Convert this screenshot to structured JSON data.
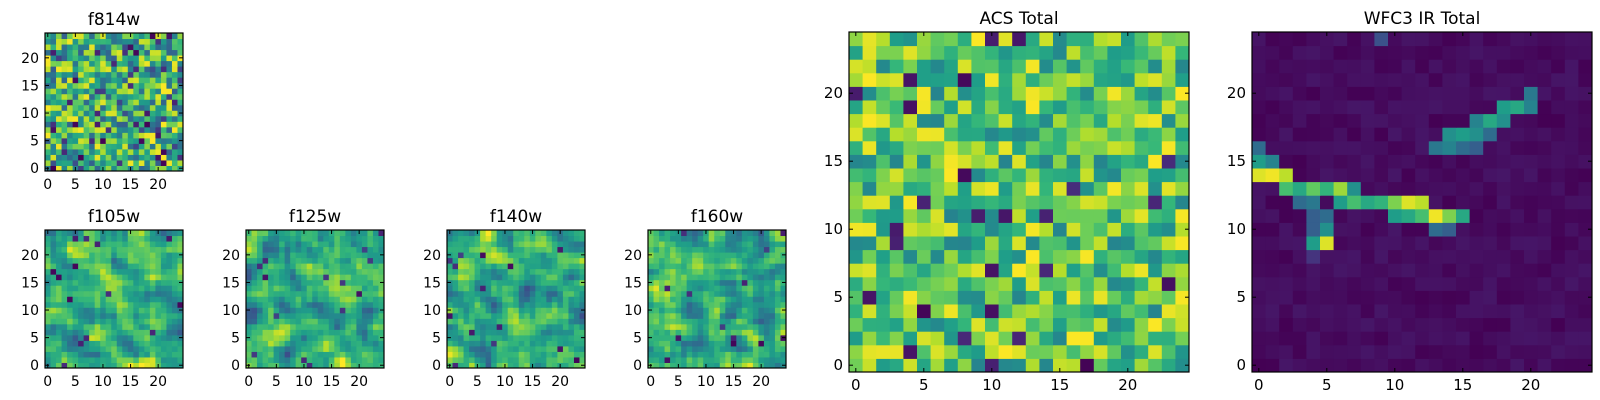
{
  "figure_title": "",
  "chart_data": [
    {
      "type": "heatmap",
      "id": "f814w",
      "title": "f814w",
      "seed": 814,
      "style": "noise",
      "grid": [
        24,
        24
      ],
      "xlim": [
        0,
        24
      ],
      "ylim": [
        0,
        24
      ],
      "xticks": [
        0,
        5,
        10,
        15,
        20
      ],
      "yticks": [
        0,
        5,
        10,
        15,
        20
      ],
      "colormap": "viridis",
      "xlabel": "",
      "ylabel": ""
    },
    {
      "type": "heatmap",
      "id": "f105w",
      "title": "f105w",
      "seed": 105,
      "style": "smooth",
      "grid": [
        24,
        24
      ],
      "xlim": [
        0,
        24
      ],
      "ylim": [
        0,
        24
      ],
      "xticks": [
        0,
        5,
        10,
        15,
        20
      ],
      "yticks": [
        0,
        5,
        10,
        15,
        20
      ],
      "colormap": "viridis",
      "xlabel": "",
      "ylabel": ""
    },
    {
      "type": "heatmap",
      "id": "f125w",
      "title": "f125w",
      "seed": 125,
      "style": "smooth",
      "grid": [
        24,
        24
      ],
      "xlim": [
        0,
        24
      ],
      "ylim": [
        0,
        24
      ],
      "xticks": [
        0,
        5,
        10,
        15,
        20
      ],
      "yticks": [
        0,
        5,
        10,
        15,
        20
      ],
      "colormap": "viridis",
      "xlabel": "",
      "ylabel": ""
    },
    {
      "type": "heatmap",
      "id": "f140w",
      "title": "f140w",
      "seed": 140,
      "style": "smooth",
      "grid": [
        24,
        24
      ],
      "xlim": [
        0,
        24
      ],
      "ylim": [
        0,
        24
      ],
      "xticks": [
        0,
        5,
        10,
        15,
        20
      ],
      "yticks": [
        0,
        5,
        10,
        15,
        20
      ],
      "colormap": "viridis",
      "xlabel": "",
      "ylabel": ""
    },
    {
      "type": "heatmap",
      "id": "f160w",
      "title": "f160w",
      "seed": 160,
      "style": "smooth",
      "grid": [
        24,
        24
      ],
      "xlim": [
        0,
        24
      ],
      "ylim": [
        0,
        24
      ],
      "xticks": [
        0,
        5,
        10,
        15,
        20
      ],
      "yticks": [
        0,
        5,
        10,
        15,
        20
      ],
      "colormap": "viridis",
      "xlabel": "",
      "ylabel": ""
    },
    {
      "type": "heatmap",
      "id": "acs-total",
      "title": "ACS Total",
      "seed": 42,
      "style": "blocky",
      "grid": [
        24,
        24
      ],
      "xlim": [
        0,
        24
      ],
      "ylim": [
        0,
        24
      ],
      "xticks": [
        0,
        5,
        10,
        15,
        20
      ],
      "yticks": [
        0,
        5,
        10,
        15,
        20
      ],
      "colormap": "viridis",
      "xlabel": "",
      "ylabel": ""
    },
    {
      "type": "heatmap",
      "id": "wfc3-ir-total",
      "title": "WFC3 IR Total",
      "seed": 7,
      "style": "streak",
      "grid": [
        24,
        24
      ],
      "xlim": [
        0,
        24
      ],
      "ylim": [
        0,
        24
      ],
      "xticks": [
        0,
        5,
        10,
        15,
        20
      ],
      "yticks": [
        0,
        5,
        10,
        15,
        20
      ],
      "colormap": "viridis",
      "xlabel": "",
      "ylabel": "",
      "bright_pixels": [
        {
          "x": 0,
          "y": 14,
          "v": 0.95
        },
        {
          "x": 1,
          "y": 14,
          "v": 0.98
        },
        {
          "x": 2,
          "y": 14,
          "v": 0.9
        },
        {
          "x": 0,
          "y": 15,
          "v": 0.55
        },
        {
          "x": 1,
          "y": 15,
          "v": 0.45
        },
        {
          "x": 0,
          "y": 16,
          "v": 0.35
        },
        {
          "x": 2,
          "y": 13,
          "v": 0.7
        },
        {
          "x": 3,
          "y": 13,
          "v": 0.6
        },
        {
          "x": 4,
          "y": 13,
          "v": 0.75
        },
        {
          "x": 5,
          "y": 13,
          "v": 0.65
        },
        {
          "x": 6,
          "y": 13,
          "v": 0.85
        },
        {
          "x": 6,
          "y": 12,
          "v": 0.55
        },
        {
          "x": 7,
          "y": 13,
          "v": 0.5
        },
        {
          "x": 7,
          "y": 12,
          "v": 0.7
        },
        {
          "x": 8,
          "y": 12,
          "v": 0.6
        },
        {
          "x": 9,
          "y": 12,
          "v": 0.65
        },
        {
          "x": 10,
          "y": 12,
          "v": 0.8
        },
        {
          "x": 10,
          "y": 11,
          "v": 0.55
        },
        {
          "x": 11,
          "y": 12,
          "v": 0.95
        },
        {
          "x": 12,
          "y": 12,
          "v": 0.9
        },
        {
          "x": 11,
          "y": 11,
          "v": 0.6
        },
        {
          "x": 12,
          "y": 11,
          "v": 0.7
        },
        {
          "x": 13,
          "y": 11,
          "v": 0.98
        },
        {
          "x": 14,
          "y": 11,
          "v": 0.8
        },
        {
          "x": 15,
          "y": 11,
          "v": 0.6
        },
        {
          "x": 13,
          "y": 10,
          "v": 0.35
        },
        {
          "x": 14,
          "y": 10,
          "v": 0.3
        },
        {
          "x": 3,
          "y": 12,
          "v": 0.35
        },
        {
          "x": 4,
          "y": 12,
          "v": 0.4
        },
        {
          "x": 4,
          "y": 11,
          "v": 0.3
        },
        {
          "x": 5,
          "y": 11,
          "v": 0.35
        },
        {
          "x": 5,
          "y": 10,
          "v": 0.5
        },
        {
          "x": 4,
          "y": 10,
          "v": 0.3
        },
        {
          "x": 5,
          "y": 9,
          "v": 0.95
        },
        {
          "x": 4,
          "y": 9,
          "v": 0.55
        },
        {
          "x": 4,
          "y": 8,
          "v": 0.15
        },
        {
          "x": 13,
          "y": 16,
          "v": 0.4
        },
        {
          "x": 14,
          "y": 16,
          "v": 0.45
        },
        {
          "x": 14,
          "y": 17,
          "v": 0.5
        },
        {
          "x": 15,
          "y": 17,
          "v": 0.55
        },
        {
          "x": 16,
          "y": 17,
          "v": 0.5
        },
        {
          "x": 16,
          "y": 18,
          "v": 0.45
        },
        {
          "x": 17,
          "y": 18,
          "v": 0.6
        },
        {
          "x": 18,
          "y": 18,
          "v": 0.5
        },
        {
          "x": 18,
          "y": 19,
          "v": 0.55
        },
        {
          "x": 19,
          "y": 19,
          "v": 0.6
        },
        {
          "x": 20,
          "y": 19,
          "v": 0.45
        },
        {
          "x": 20,
          "y": 20,
          "v": 0.4
        },
        {
          "x": 15,
          "y": 16,
          "v": 0.35
        },
        {
          "x": 16,
          "y": 16,
          "v": 0.3
        },
        {
          "x": 17,
          "y": 17,
          "v": 0.35
        },
        {
          "x": 9,
          "y": 24,
          "v": 0.25
        }
      ]
    }
  ]
}
